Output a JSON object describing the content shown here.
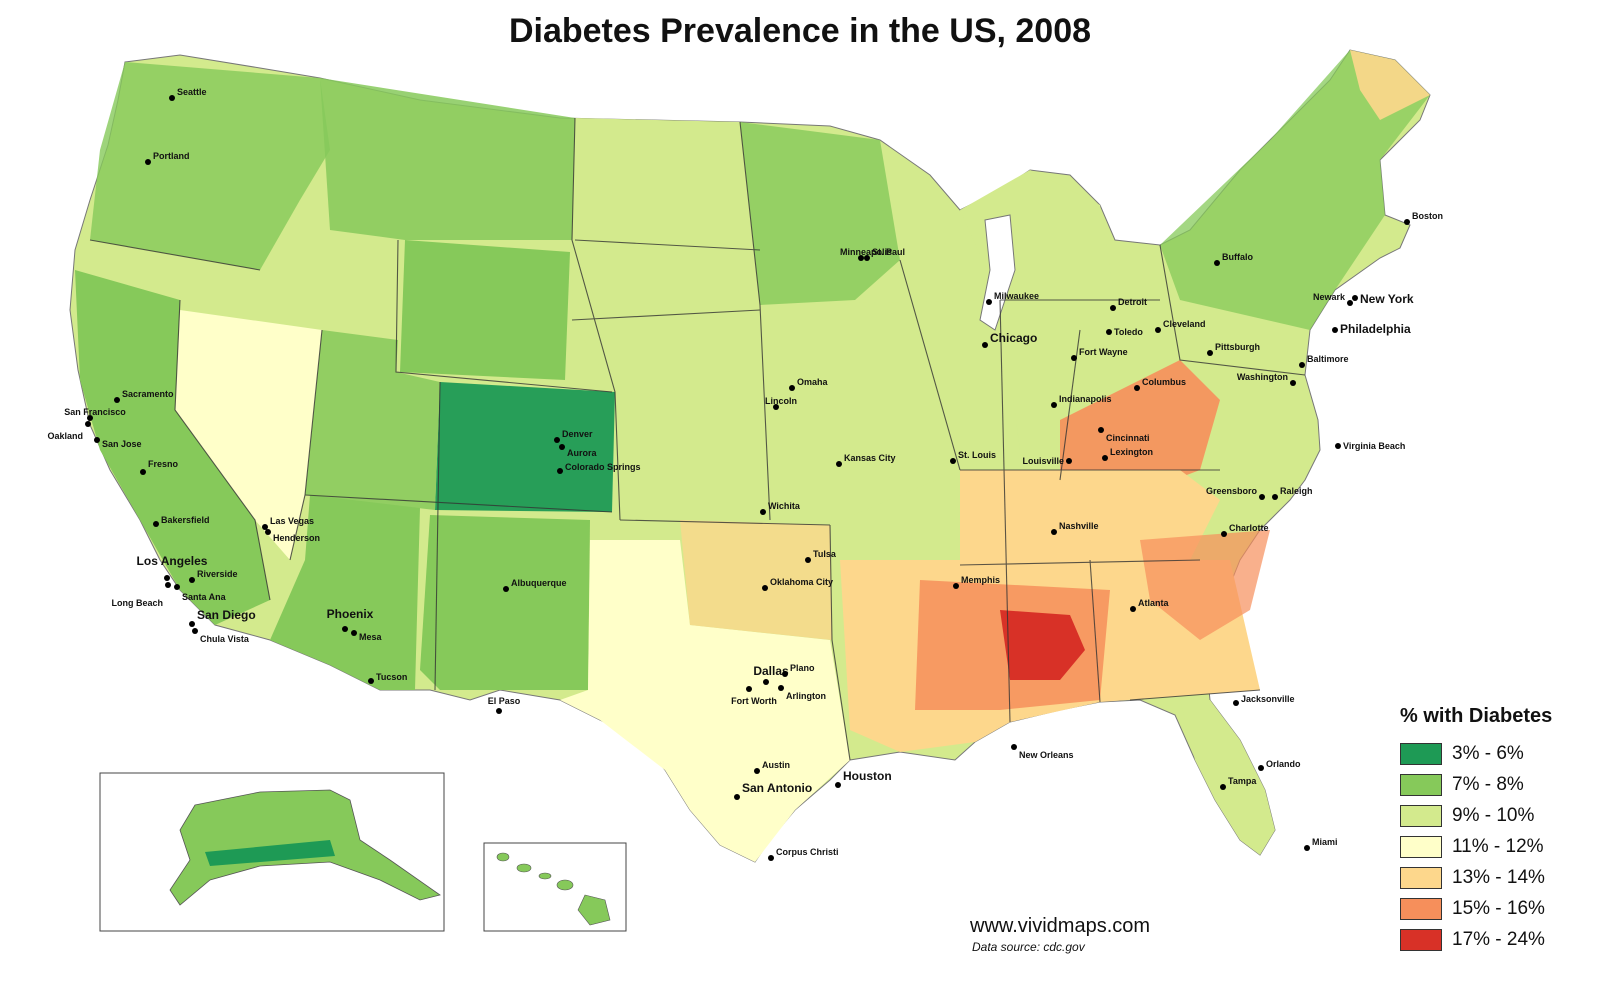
{
  "title": "Diabetes Prevalence in the US, 2008",
  "legend": {
    "title": "% with Diabetes",
    "items": [
      {
        "label": "3% - 6%",
        "color": "#1e9a55"
      },
      {
        "label": "7% - 8%",
        "color": "#86c95a"
      },
      {
        "label": "9% - 10%",
        "color": "#d3ea8d"
      },
      {
        "label": "11% - 12%",
        "color": "#ffffc9"
      },
      {
        "label": "13% - 14%",
        "color": "#fdd78c"
      },
      {
        "label": "15% - 16%",
        "color": "#f68f5b"
      },
      {
        "label": "17% - 24%",
        "color": "#d83127"
      }
    ]
  },
  "cities": [
    "Seattle",
    "Portland",
    "Sacramento",
    "San Francisco",
    "Oakland",
    "San Jose",
    "Fresno",
    "Bakersfield",
    "Los Angeles",
    "Riverside",
    "Long Beach",
    "Santa Ana",
    "San Diego",
    "Chula Vista",
    "Las Vegas",
    "Henderson",
    "Phoenix",
    "Mesa",
    "Tucson",
    "Albuquerque",
    "El Paso",
    "Denver",
    "Aurora",
    "Colorado Springs",
    "Minneapolis",
    "St. Paul",
    "Omaha",
    "Lincoln",
    "Kansas City",
    "Wichita",
    "Tulsa",
    "Oklahoma City",
    "Dallas",
    "Plano",
    "Fort Worth",
    "Arlington",
    "Austin",
    "San Antonio",
    "Houston",
    "Corpus Christi",
    "Milwaukee",
    "Chicago",
    "Detroit",
    "Toledo",
    "Cleveland",
    "Fort Wayne",
    "Columbus",
    "Indianapolis",
    "Cincinnati",
    "Louisville",
    "Lexington",
    "St. Louis",
    "Nashville",
    "Memphis",
    "New Orleans",
    "Atlanta",
    "Charlotte",
    "Greensboro",
    "Raleigh",
    "Virginia Beach",
    "Washington",
    "Baltimore",
    "Philadelphia",
    "Pittsburgh",
    "Newark",
    "New York",
    "Buffalo",
    "Boston",
    "Jacksonville",
    "Orlando",
    "Tampa",
    "Miami"
  ],
  "credits": {
    "site": "www.vividmaps.com",
    "source": "Data source: cdc.gov"
  }
}
